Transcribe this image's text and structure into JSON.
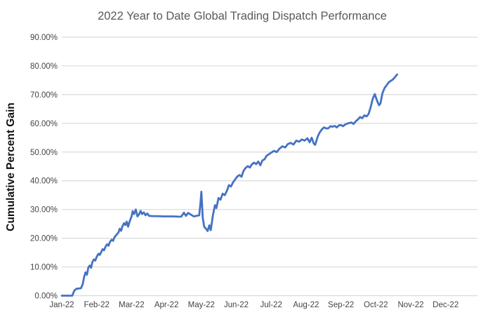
{
  "chart_data": {
    "type": "line",
    "title": "2022 Year to Date Global Trading Dispatch Performance",
    "ylabel": "Cumulative Percent Gain",
    "xlabel": "",
    "x_tick_labels": [
      "Jan-22",
      "Feb-22",
      "Mar-22",
      "Apr-22",
      "May-22",
      "Jun-22",
      "Jul-22",
      "Aug-22",
      "Sep-22",
      "Oct-22",
      "Nov-22",
      "Dec-22"
    ],
    "y_tick_labels": [
      "0.00%",
      "10.00%",
      "20.00%",
      "30.00%",
      "40.00%",
      "50.00%",
      "60.00%",
      "70.00%",
      "80.00%",
      "90.00%"
    ],
    "ylim": [
      0,
      90
    ],
    "xlim_months": [
      0,
      12
    ],
    "grid": true,
    "legend": "none",
    "colors": {
      "line": "#4472C4",
      "title": "#595959",
      "tick_label": "#444444",
      "axis_title": "#111111",
      "gridline": "#d9d9d9",
      "background": "#ffffff"
    },
    "series": [
      {
        "name": "Cumulative Percent Gain",
        "points_note": "x = months after Jan-22 tick (0=Jan-22, 11=Dec-22), y = cumulative percent gain",
        "points": [
          [
            0.0,
            0
          ],
          [
            0.3,
            0
          ],
          [
            0.36,
            1.8
          ],
          [
            0.42,
            2.4
          ],
          [
            0.55,
            2.6
          ],
          [
            0.6,
            4.0
          ],
          [
            0.64,
            6.5
          ],
          [
            0.68,
            8.1
          ],
          [
            0.72,
            7.3
          ],
          [
            0.76,
            9.8
          ],
          [
            0.8,
            10.5
          ],
          [
            0.84,
            9.7
          ],
          [
            0.88,
            11.8
          ],
          [
            0.92,
            12.6
          ],
          [
            0.96,
            12.2
          ],
          [
            1.0,
            13.5
          ],
          [
            1.05,
            14.6
          ],
          [
            1.09,
            14.2
          ],
          [
            1.13,
            15.2
          ],
          [
            1.17,
            16.2
          ],
          [
            1.21,
            15.8
          ],
          [
            1.26,
            17.2
          ],
          [
            1.3,
            17.9
          ],
          [
            1.34,
            17.4
          ],
          [
            1.38,
            18.7
          ],
          [
            1.43,
            19.5
          ],
          [
            1.47,
            19.1
          ],
          [
            1.51,
            20.3
          ],
          [
            1.56,
            21.1
          ],
          [
            1.62,
            21.9
          ],
          [
            1.66,
            23.3
          ],
          [
            1.7,
            22.6
          ],
          [
            1.74,
            24.2
          ],
          [
            1.78,
            25.2
          ],
          [
            1.82,
            24.6
          ],
          [
            1.86,
            25.8
          ],
          [
            1.9,
            24.0
          ],
          [
            1.95,
            26.0
          ],
          [
            2.0,
            27.6
          ],
          [
            2.03,
            29.4
          ],
          [
            2.07,
            28.4
          ],
          [
            2.12,
            30.0
          ],
          [
            2.17,
            27.6
          ],
          [
            2.21,
            28.2
          ],
          [
            2.26,
            29.5
          ],
          [
            2.3,
            28.4
          ],
          [
            2.35,
            29.0
          ],
          [
            2.4,
            28.0
          ],
          [
            2.45,
            28.6
          ],
          [
            2.5,
            27.8
          ],
          [
            2.6,
            27.7
          ],
          [
            2.75,
            27.7
          ],
          [
            2.9,
            27.6
          ],
          [
            3.05,
            27.6
          ],
          [
            3.2,
            27.6
          ],
          [
            3.35,
            27.5
          ],
          [
            3.42,
            27.5
          ],
          [
            3.5,
            28.9
          ],
          [
            3.56,
            27.8
          ],
          [
            3.62,
            28.8
          ],
          [
            3.7,
            28.2
          ],
          [
            3.78,
            27.6
          ],
          [
            3.86,
            27.8
          ],
          [
            3.94,
            28.0
          ],
          [
            3.98,
            33.0
          ],
          [
            4.0,
            36.2
          ],
          [
            4.04,
            27.0
          ],
          [
            4.08,
            24.0
          ],
          [
            4.14,
            23.2
          ],
          [
            4.18,
            22.5
          ],
          [
            4.23,
            24.5
          ],
          [
            4.27,
            22.8
          ],
          [
            4.33,
            28.0
          ],
          [
            4.39,
            31.5
          ],
          [
            4.43,
            30.5
          ],
          [
            4.49,
            34.0
          ],
          [
            4.55,
            33.4
          ],
          [
            4.61,
            35.5
          ],
          [
            4.67,
            35.0
          ],
          [
            4.73,
            36.5
          ],
          [
            4.79,
            38.5
          ],
          [
            4.85,
            38.0
          ],
          [
            4.91,
            39.5
          ],
          [
            4.97,
            40.5
          ],
          [
            5.03,
            41.5
          ],
          [
            5.09,
            42.0
          ],
          [
            5.15,
            41.4
          ],
          [
            5.21,
            43.5
          ],
          [
            5.27,
            44.5
          ],
          [
            5.33,
            45.1
          ],
          [
            5.39,
            44.6
          ],
          [
            5.45,
            45.8
          ],
          [
            5.51,
            46.3
          ],
          [
            5.57,
            45.8
          ],
          [
            5.63,
            46.7
          ],
          [
            5.69,
            45.4
          ],
          [
            5.75,
            47.1
          ],
          [
            5.81,
            47.5
          ],
          [
            5.87,
            48.7
          ],
          [
            5.98,
            49.6
          ],
          [
            6.08,
            50.4
          ],
          [
            6.16,
            50.0
          ],
          [
            6.24,
            51.2
          ],
          [
            6.32,
            52.0
          ],
          [
            6.4,
            51.6
          ],
          [
            6.48,
            52.8
          ],
          [
            6.56,
            53.2
          ],
          [
            6.64,
            52.6
          ],
          [
            6.72,
            54.0
          ],
          [
            6.8,
            53.6
          ],
          [
            6.88,
            54.4
          ],
          [
            6.96,
            54.0
          ],
          [
            7.04,
            54.8
          ],
          [
            7.1,
            53.4
          ],
          [
            7.16,
            55.0
          ],
          [
            7.22,
            53.0
          ],
          [
            7.26,
            52.5
          ],
          [
            7.34,
            55.6
          ],
          [
            7.4,
            57.0
          ],
          [
            7.46,
            58.0
          ],
          [
            7.52,
            58.6
          ],
          [
            7.58,
            58.2
          ],
          [
            7.64,
            58.3
          ],
          [
            7.7,
            59.0
          ],
          [
            7.76,
            58.8
          ],
          [
            7.82,
            59.1
          ],
          [
            7.88,
            58.6
          ],
          [
            7.94,
            59.3
          ],
          [
            8.0,
            59.4
          ],
          [
            8.06,
            59.0
          ],
          [
            8.12,
            59.6
          ],
          [
            8.18,
            59.9
          ],
          [
            8.24,
            60.1
          ],
          [
            8.3,
            60.3
          ],
          [
            8.36,
            59.8
          ],
          [
            8.43,
            60.8
          ],
          [
            8.49,
            61.4
          ],
          [
            8.55,
            62.2
          ],
          [
            8.61,
            61.8
          ],
          [
            8.67,
            62.8
          ],
          [
            8.73,
            62.4
          ],
          [
            8.79,
            63.2
          ],
          [
            8.85,
            65.5
          ],
          [
            8.91,
            68.5
          ],
          [
            8.97,
            70.2
          ],
          [
            9.03,
            68.0
          ],
          [
            9.09,
            66.3
          ],
          [
            9.13,
            66.9
          ],
          [
            9.19,
            70.5
          ],
          [
            9.25,
            72.3
          ],
          [
            9.31,
            73.3
          ],
          [
            9.37,
            74.3
          ],
          [
            9.43,
            74.8
          ],
          [
            9.49,
            75.3
          ],
          [
            9.55,
            76.1
          ],
          [
            9.61,
            77.0
          ]
        ]
      }
    ]
  }
}
